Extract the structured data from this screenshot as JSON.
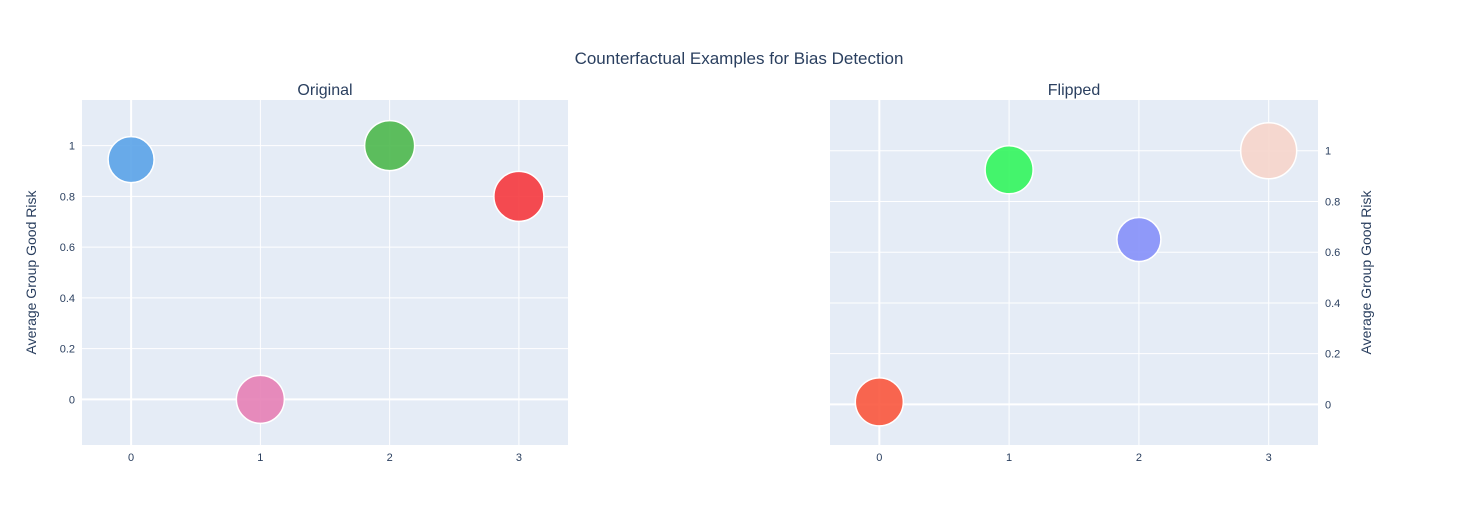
{
  "chart_data": {
    "type": "scatter",
    "title": "Counterfactual Examples for Bias Detection",
    "plot_bgcolor": "#e5ecf6",
    "gridline_color": "#ffffff",
    "panels": [
      {
        "subtitle": "Original",
        "x_ticks": [
          "0",
          "1",
          "2",
          "3"
        ],
        "y_ticks": [
          "0",
          "0.2",
          "0.4",
          "0.6",
          "0.8",
          "1"
        ],
        "xlim": [
          -0.38,
          3.38
        ],
        "ylim": [
          -0.18,
          1.18
        ],
        "ylabel": "Average Group Good Risk",
        "yaxis_side": "left",
        "grid": true,
        "points": [
          {
            "x": 0,
            "y": 0.945,
            "size": 46,
            "color": "#5aa3e8"
          },
          {
            "x": 1,
            "y": 0.0,
            "size": 48,
            "color": "#e57fb5"
          },
          {
            "x": 2,
            "y": 1.0,
            "size": 50,
            "color": "#4cb84c"
          },
          {
            "x": 3,
            "y": 0.8,
            "size": 50,
            "color": "#f5393e"
          }
        ]
      },
      {
        "subtitle": "Flipped",
        "x_ticks": [
          "0",
          "1",
          "2",
          "3"
        ],
        "y_ticks": [
          "0",
          "0.2",
          "0.4",
          "0.6",
          "0.8",
          "1"
        ],
        "xlim": [
          -0.38,
          3.38
        ],
        "ylim": [
          -0.16,
          1.2
        ],
        "ylabel": "Average Group Good Risk",
        "yaxis_side": "right",
        "grid": true,
        "points": [
          {
            "x": 0,
            "y": 0.01,
            "size": 48,
            "color": "#f9573d"
          },
          {
            "x": 1,
            "y": 0.925,
            "size": 48,
            "color": "#32f55d"
          },
          {
            "x": 2,
            "y": 0.65,
            "size": 44,
            "color": "#8590f9"
          },
          {
            "x": 3,
            "y": 1.0,
            "size": 56,
            "color": "#f6d5cb"
          }
        ]
      }
    ]
  }
}
